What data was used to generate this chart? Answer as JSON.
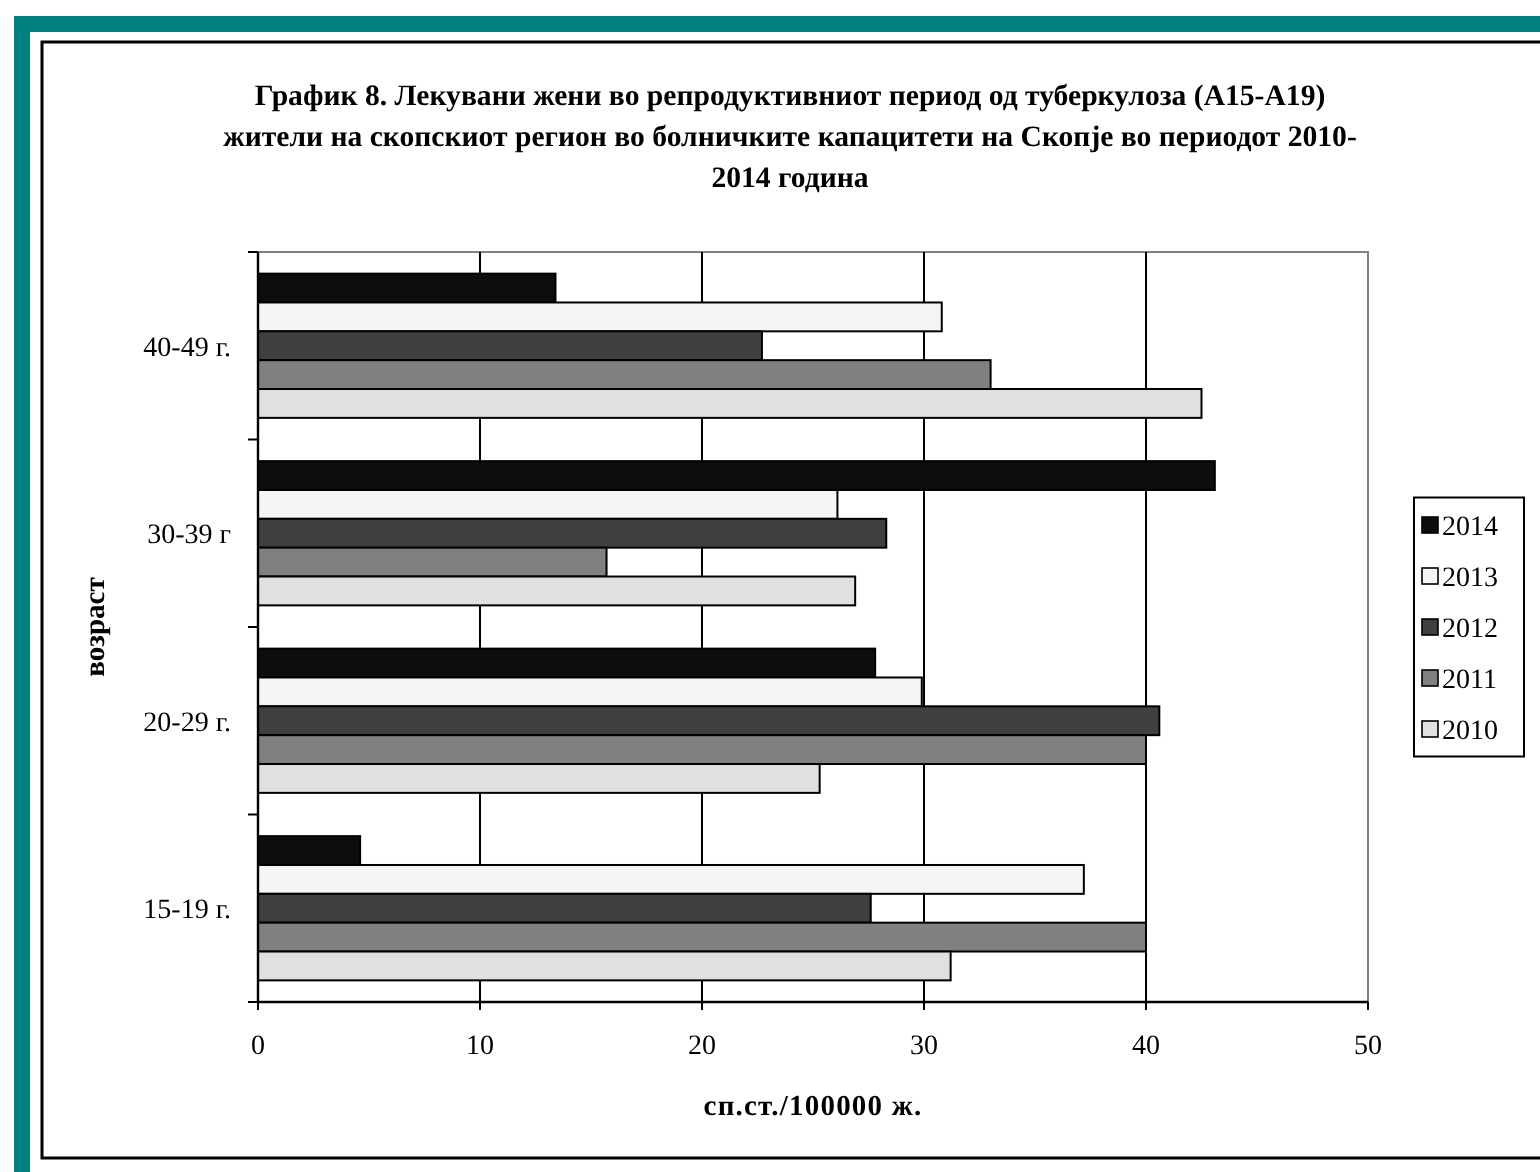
{
  "chart_data": {
    "type": "bar",
    "orientation": "horizontal",
    "title": "График 8. Лекувани жени во репродуктивниот период од туберкулоза (A15-A19) жители на скопскиот регион во болничките капацитети на Скопје во периодот 2010-2014 година",
    "xlabel": "сп.ст./100000 ж.",
    "ylabel": "возраст",
    "categories": [
      "40-49 г.",
      "30-39 г",
      "20-29 г.",
      "15-19 г."
    ],
    "series": [
      {
        "name": "2014",
        "color": "#0d0d0d",
        "values": [
          13.4,
          43.1,
          27.8,
          4.6
        ]
      },
      {
        "name": "2013",
        "color": "#f5f5f5",
        "values": [
          30.8,
          26.1,
          29.9,
          37.2
        ]
      },
      {
        "name": "2012",
        "color": "#404040",
        "values": [
          22.7,
          28.3,
          40.6,
          27.6
        ]
      },
      {
        "name": "2011",
        "color": "#808080",
        "values": [
          33.0,
          15.7,
          40.0,
          40.0
        ]
      },
      {
        "name": "2010",
        "color": "#e0e0e0",
        "values": [
          42.5,
          26.9,
          25.3,
          31.2
        ]
      }
    ],
    "xlim": [
      0,
      50
    ],
    "xticks": [
      0,
      10,
      20,
      30,
      40,
      50
    ],
    "grid": "x",
    "legend": "right"
  }
}
